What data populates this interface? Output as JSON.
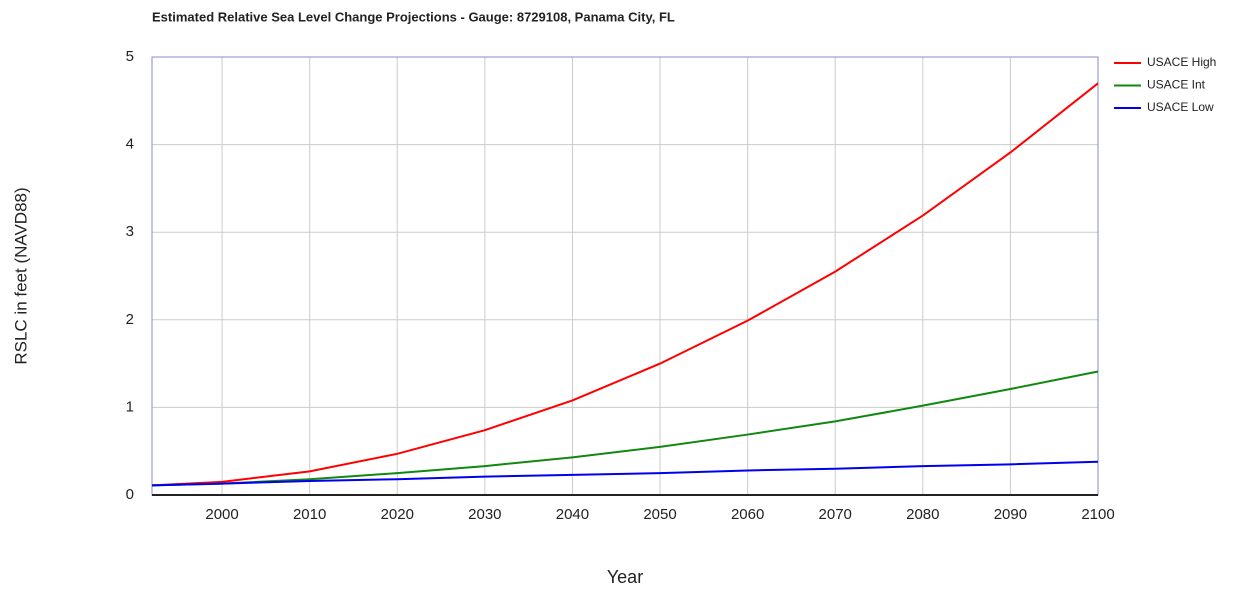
{
  "chart_data": {
    "type": "line",
    "title": "Estimated Relative Sea Level Change Projections - Gauge: 8729108, Panama City, FL",
    "x_label": "Year",
    "y_label": "RSLC in feet (NAVD88)",
    "x": [
      1992,
      2000,
      2010,
      2020,
      2030,
      2040,
      2050,
      2060,
      2070,
      2080,
      2090,
      2100
    ],
    "series": [
      {
        "name": "USACE High",
        "color": "#ff0000",
        "values": [
          0.11,
          0.15,
          0.27,
          0.47,
          0.74,
          1.08,
          1.5,
          1.99,
          2.55,
          3.19,
          3.91,
          4.7
        ]
      },
      {
        "name": "USACE Int",
        "color": "#118811",
        "values": [
          0.11,
          0.13,
          0.18,
          0.25,
          0.33,
          0.43,
          0.55,
          0.69,
          0.84,
          1.02,
          1.21,
          1.41
        ]
      },
      {
        "name": "USACE Low",
        "color": "#0000ee",
        "values": [
          0.11,
          0.13,
          0.16,
          0.18,
          0.21,
          0.23,
          0.25,
          0.28,
          0.3,
          0.33,
          0.35,
          0.38
        ]
      }
    ],
    "xlim": [
      1992,
      2100
    ],
    "xticks": [
      2000,
      2010,
      2020,
      2030,
      2040,
      2050,
      2060,
      2070,
      2080,
      2090,
      2100
    ],
    "ylim": [
      0,
      5
    ],
    "yticks": [
      0,
      1,
      2,
      3,
      4,
      5
    ],
    "grid": true,
    "legend": "right"
  }
}
